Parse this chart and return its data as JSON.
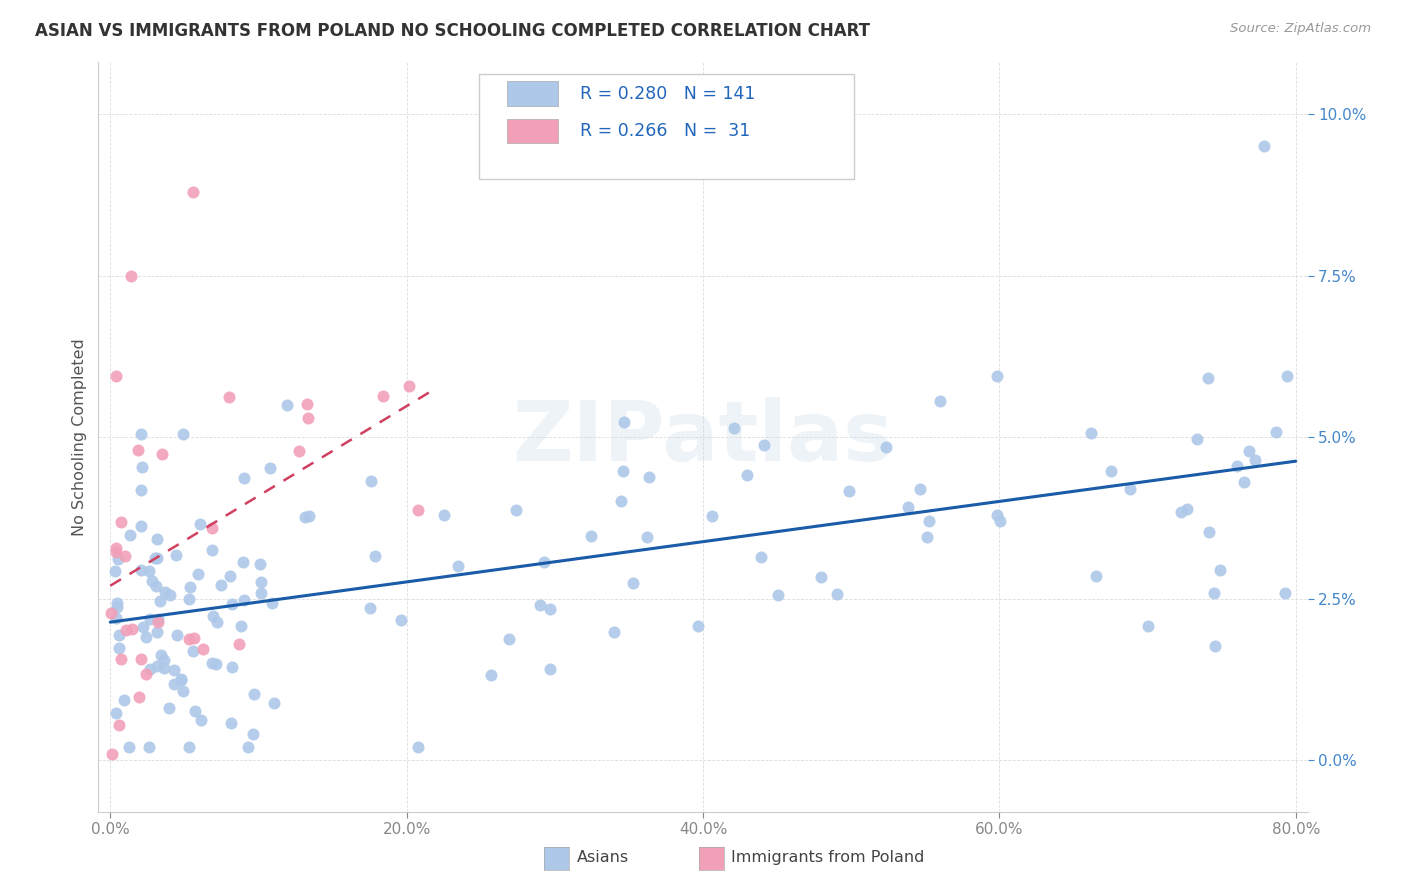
{
  "title": "ASIAN VS IMMIGRANTS FROM POLAND NO SCHOOLING COMPLETED CORRELATION CHART",
  "source": "Source: ZipAtlas.com",
  "ylabel": "No Schooling Completed",
  "asian_R": "0.280",
  "asian_N": "141",
  "poland_R": "0.266",
  "poland_N": "31",
  "asian_color": "#adc8e8",
  "poland_color": "#f2a0b8",
  "asian_line_color": "#1a5ca8",
  "poland_line_color": "#d04060",
  "watermark": "ZIPatlas",
  "background_color": "#ffffff",
  "xlim": [
    0.0,
    0.8
  ],
  "ylim": [
    -0.008,
    0.108
  ],
  "xticks": [
    0.0,
    0.2,
    0.4,
    0.6,
    0.8
  ],
  "yticks": [
    0.0,
    0.025,
    0.05,
    0.075,
    0.1
  ],
  "xticklabels": [
    "0.0%",
    "20.0%",
    "40.0%",
    "60.0%",
    "80.0%"
  ],
  "yticklabels": [
    "0.0%",
    "2.5%",
    "5.0%",
    "7.5%",
    "10.0%"
  ]
}
